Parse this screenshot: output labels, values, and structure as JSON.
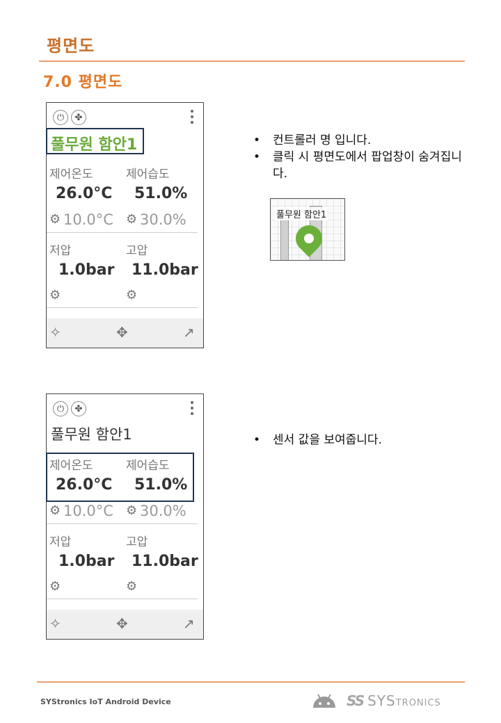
{
  "header": {
    "title": "평면도",
    "section": "7.0  평면도"
  },
  "card": {
    "name": "풀무원 함안1",
    "power_icon": "⏻",
    "fan_icon": "✤",
    "sensors": {
      "temp_label": "제어온도",
      "hum_label": "제어습도",
      "temp_value": "26.0°C",
      "hum_value": "51.0%",
      "temp_setpoint": "10.0°C",
      "hum_setpoint": "30.0%"
    },
    "pressure": {
      "low_label": "저압",
      "high_label": "고압",
      "low_value": "1.0bar",
      "high_value": "11.0bar"
    },
    "gear_icon": "⚙",
    "footer_icons": {
      "pin": "✧",
      "move": "✥",
      "share": "↗"
    }
  },
  "notes1": [
    "컨트롤러 명 입니다.",
    "클릭 시 평면도에서 팝업창이 숨겨집니다."
  ],
  "thumbnail": {
    "label": "풀무원 함안1"
  },
  "notes2": [
    "센서 값을 보여줍니다."
  ],
  "footer": {
    "text": "SYStronics IoT Android Device",
    "logo_mark": "SS",
    "logo_text": "SYS",
    "logo_text_small": "TRONICS"
  }
}
